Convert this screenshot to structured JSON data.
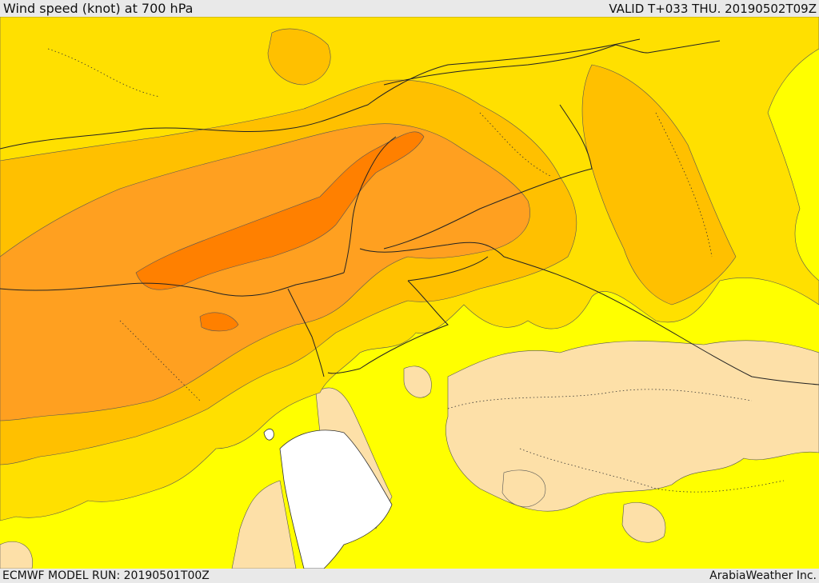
{
  "header": {
    "title": "Wind speed (knot) at 700 hPa",
    "valid": "VALID T+033 THU. 20190502T09Z"
  },
  "footer": {
    "model_run": "ECMWF MODEL RUN: 20190501T00Z",
    "credit": "ArabiaWeather Inc."
  },
  "map": {
    "colors": {
      "band_lowest": "#fde0a8",
      "band_low": "#ffff00",
      "band_mid": "#ffe000",
      "band_high": "#ffc000",
      "band_higher": "#ffa020",
      "band_highest": "#ff8000",
      "water": "#ffffff",
      "border": "#222222"
    }
  }
}
